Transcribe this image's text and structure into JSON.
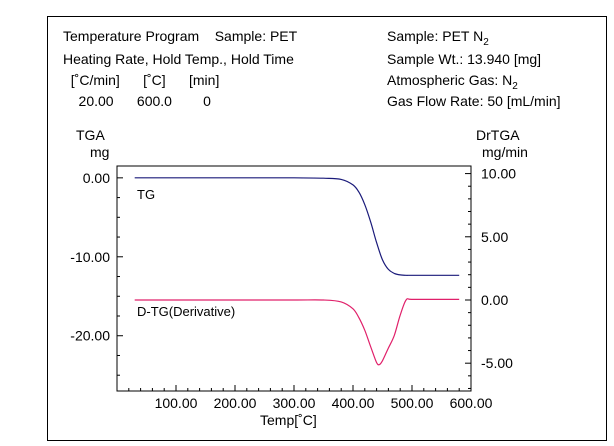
{
  "header": {
    "left": {
      "line1": "Temperature Program    Sample: PET",
      "line2": "Heating Rate, Hold Temp., Hold Time",
      "line3": "  [˚C/min]      [˚C]      [min]",
      "line4": "    20.00      600.0        0"
    },
    "right": {
      "line1": "Sample: PET N",
      "line1_sub": "2",
      "line2": "Sample Wt.: 13.940 [mg]",
      "line3": "Atmospheric Gas: N",
      "line3_sub": "2",
      "line4": "Gas Flow Rate: 50 [mL/min]"
    }
  },
  "chart_data": {
    "type": "line",
    "xlabel": "Temp[˚C]",
    "xlim": [
      0,
      600
    ],
    "x_ticks": [
      "100.00",
      "200.00",
      "300.00",
      "400.00",
      "500.00",
      "600.00"
    ],
    "x_tick_values": [
      100,
      200,
      300,
      400,
      500,
      600
    ],
    "left_axis": {
      "label_line1": "TGA",
      "label_line2": "mg",
      "ylim": [
        -27,
        1.5
      ],
      "ticks": [
        "0.00",
        "-10.00",
        "-20.00"
      ],
      "tick_values": [
        0,
        -10,
        -20
      ]
    },
    "right_axis": {
      "label_line1": "DrTGA",
      "label_line2": "mg/min",
      "ylim": [
        -7.2,
        10.6
      ],
      "ticks": [
        "10.00",
        "5.00",
        "0.00",
        "-5.00"
      ],
      "tick_values": [
        10,
        5,
        0,
        -5
      ]
    },
    "series": [
      {
        "name": "TG",
        "axis": "left",
        "color": "#1a1a7a",
        "x": [
          30,
          100,
          200,
          300,
          350,
          380,
          400,
          410,
          420,
          430,
          440,
          450,
          460,
          470,
          480,
          490,
          500,
          550,
          580
        ],
        "y": [
          0.0,
          0.0,
          0.0,
          0.0,
          -0.05,
          -0.2,
          -0.9,
          -1.8,
          -3.4,
          -5.6,
          -8.2,
          -10.4,
          -11.6,
          -12.1,
          -12.3,
          -12.35,
          -12.35,
          -12.35,
          -12.35
        ]
      },
      {
        "name": "D-TG(Derivative)",
        "axis": "right",
        "color": "#e0206a",
        "x": [
          30,
          100,
          200,
          300,
          350,
          380,
          400,
          410,
          420,
          430,
          440,
          445,
          450,
          460,
          470,
          480,
          490,
          500,
          550,
          580
        ],
        "y": [
          0.0,
          0.0,
          0.0,
          0.0,
          0.0,
          -0.15,
          -0.7,
          -1.4,
          -2.4,
          -3.7,
          -4.95,
          -5.1,
          -4.8,
          -3.8,
          -2.8,
          -1.2,
          0.0,
          0.05,
          0.05,
          0.05
        ]
      }
    ]
  }
}
